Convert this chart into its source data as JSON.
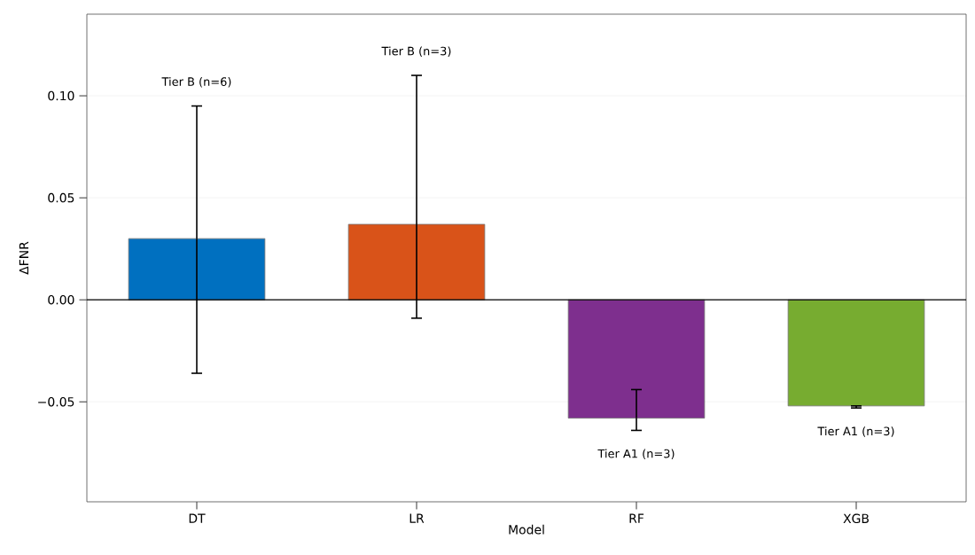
{
  "chart_data": {
    "type": "bar",
    "xlabel": "Model",
    "ylabel": "ΔFNR",
    "categories": [
      "DT",
      "LR",
      "RF",
      "XGB"
    ],
    "values": [
      0.03,
      0.037,
      -0.058,
      -0.052
    ],
    "colors": [
      "#0070c0",
      "#d95319",
      "#7e2f8e",
      "#77ac30"
    ],
    "errors": [
      [
        -0.036,
        0.095
      ],
      [
        -0.009,
        0.11
      ],
      [
        -0.064,
        -0.044
      ],
      [
        -0.053,
        -0.052
      ]
    ],
    "ylim": [
      -0.099,
      0.14
    ],
    "yticks": [
      {
        "value": -0.05,
        "label": "−0.05"
      },
      {
        "value": 0,
        "label": "0.00"
      },
      {
        "value": 0.05,
        "label": "0.05"
      },
      {
        "value": 0.1,
        "label": "0.10"
      }
    ],
    "grid": "y",
    "ref_lines": [
      {
        "axis": "y",
        "value": 0,
        "color": "#000000"
      }
    ],
    "annotations": [
      "Tier B (n=6)",
      "Tier B (n=3)",
      "Tier A1 (n=3)",
      "Tier A1 (n=3)"
    ]
  }
}
